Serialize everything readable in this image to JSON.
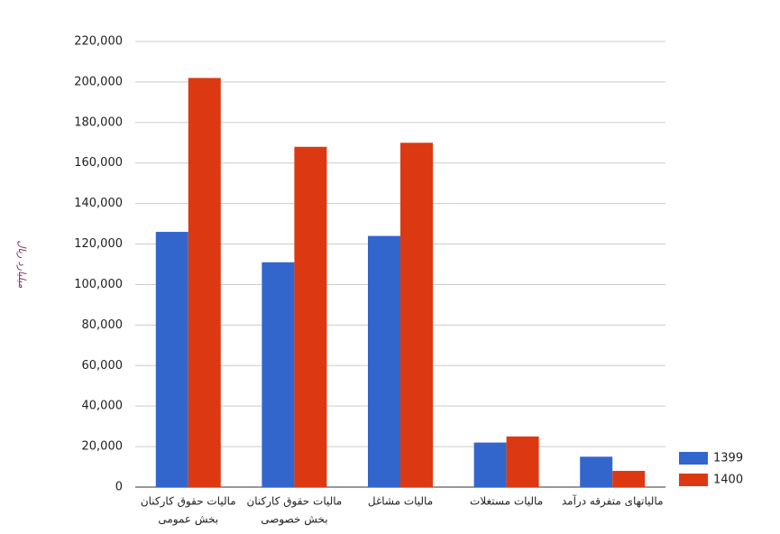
{
  "chart_data": {
    "type": "bar",
    "y_label": "میلیارد ریال",
    "categories": [
      [
        "مالیات حقوق کارکنان",
        "بخش عمومی"
      ],
      [
        "مالیات حقوق کارکنان",
        "بخش خصوصی"
      ],
      [
        "مالیات مشاغل"
      ],
      [
        "مالیات مستغلات"
      ],
      [
        "مالیاتهای متفرقه درآمد"
      ]
    ],
    "series": [
      {
        "name": "1399",
        "color": "#3366cc",
        "values": [
          126000,
          111000,
          124000,
          22000,
          15000
        ]
      },
      {
        "name": "1400",
        "color": "#dc3912",
        "values": [
          202000,
          168000,
          170000,
          25000,
          8000
        ]
      }
    ],
    "ylim": [
      0,
      220000
    ],
    "yticks": [
      0,
      {
        "value": 20000,
        "label": "20,000"
      },
      {
        "value": 40000,
        "label": "40,000"
      },
      {
        "value": 60000,
        "label": "60,000"
      },
      {
        "value": 80000,
        "label": "80,000"
      },
      {
        "value": 100000,
        "label": "100,000"
      },
      {
        "value": 120000,
        "label": "120,000"
      },
      {
        "value": 140000,
        "label": "140,000"
      },
      {
        "value": 160000,
        "label": "160,000"
      },
      {
        "value": 180000,
        "label": "180,000"
      },
      {
        "value": 200000,
        "label": "200,000"
      },
      {
        "value": 220000,
        "label": "220,000"
      }
    ],
    "grid": true,
    "legend": "right"
  }
}
